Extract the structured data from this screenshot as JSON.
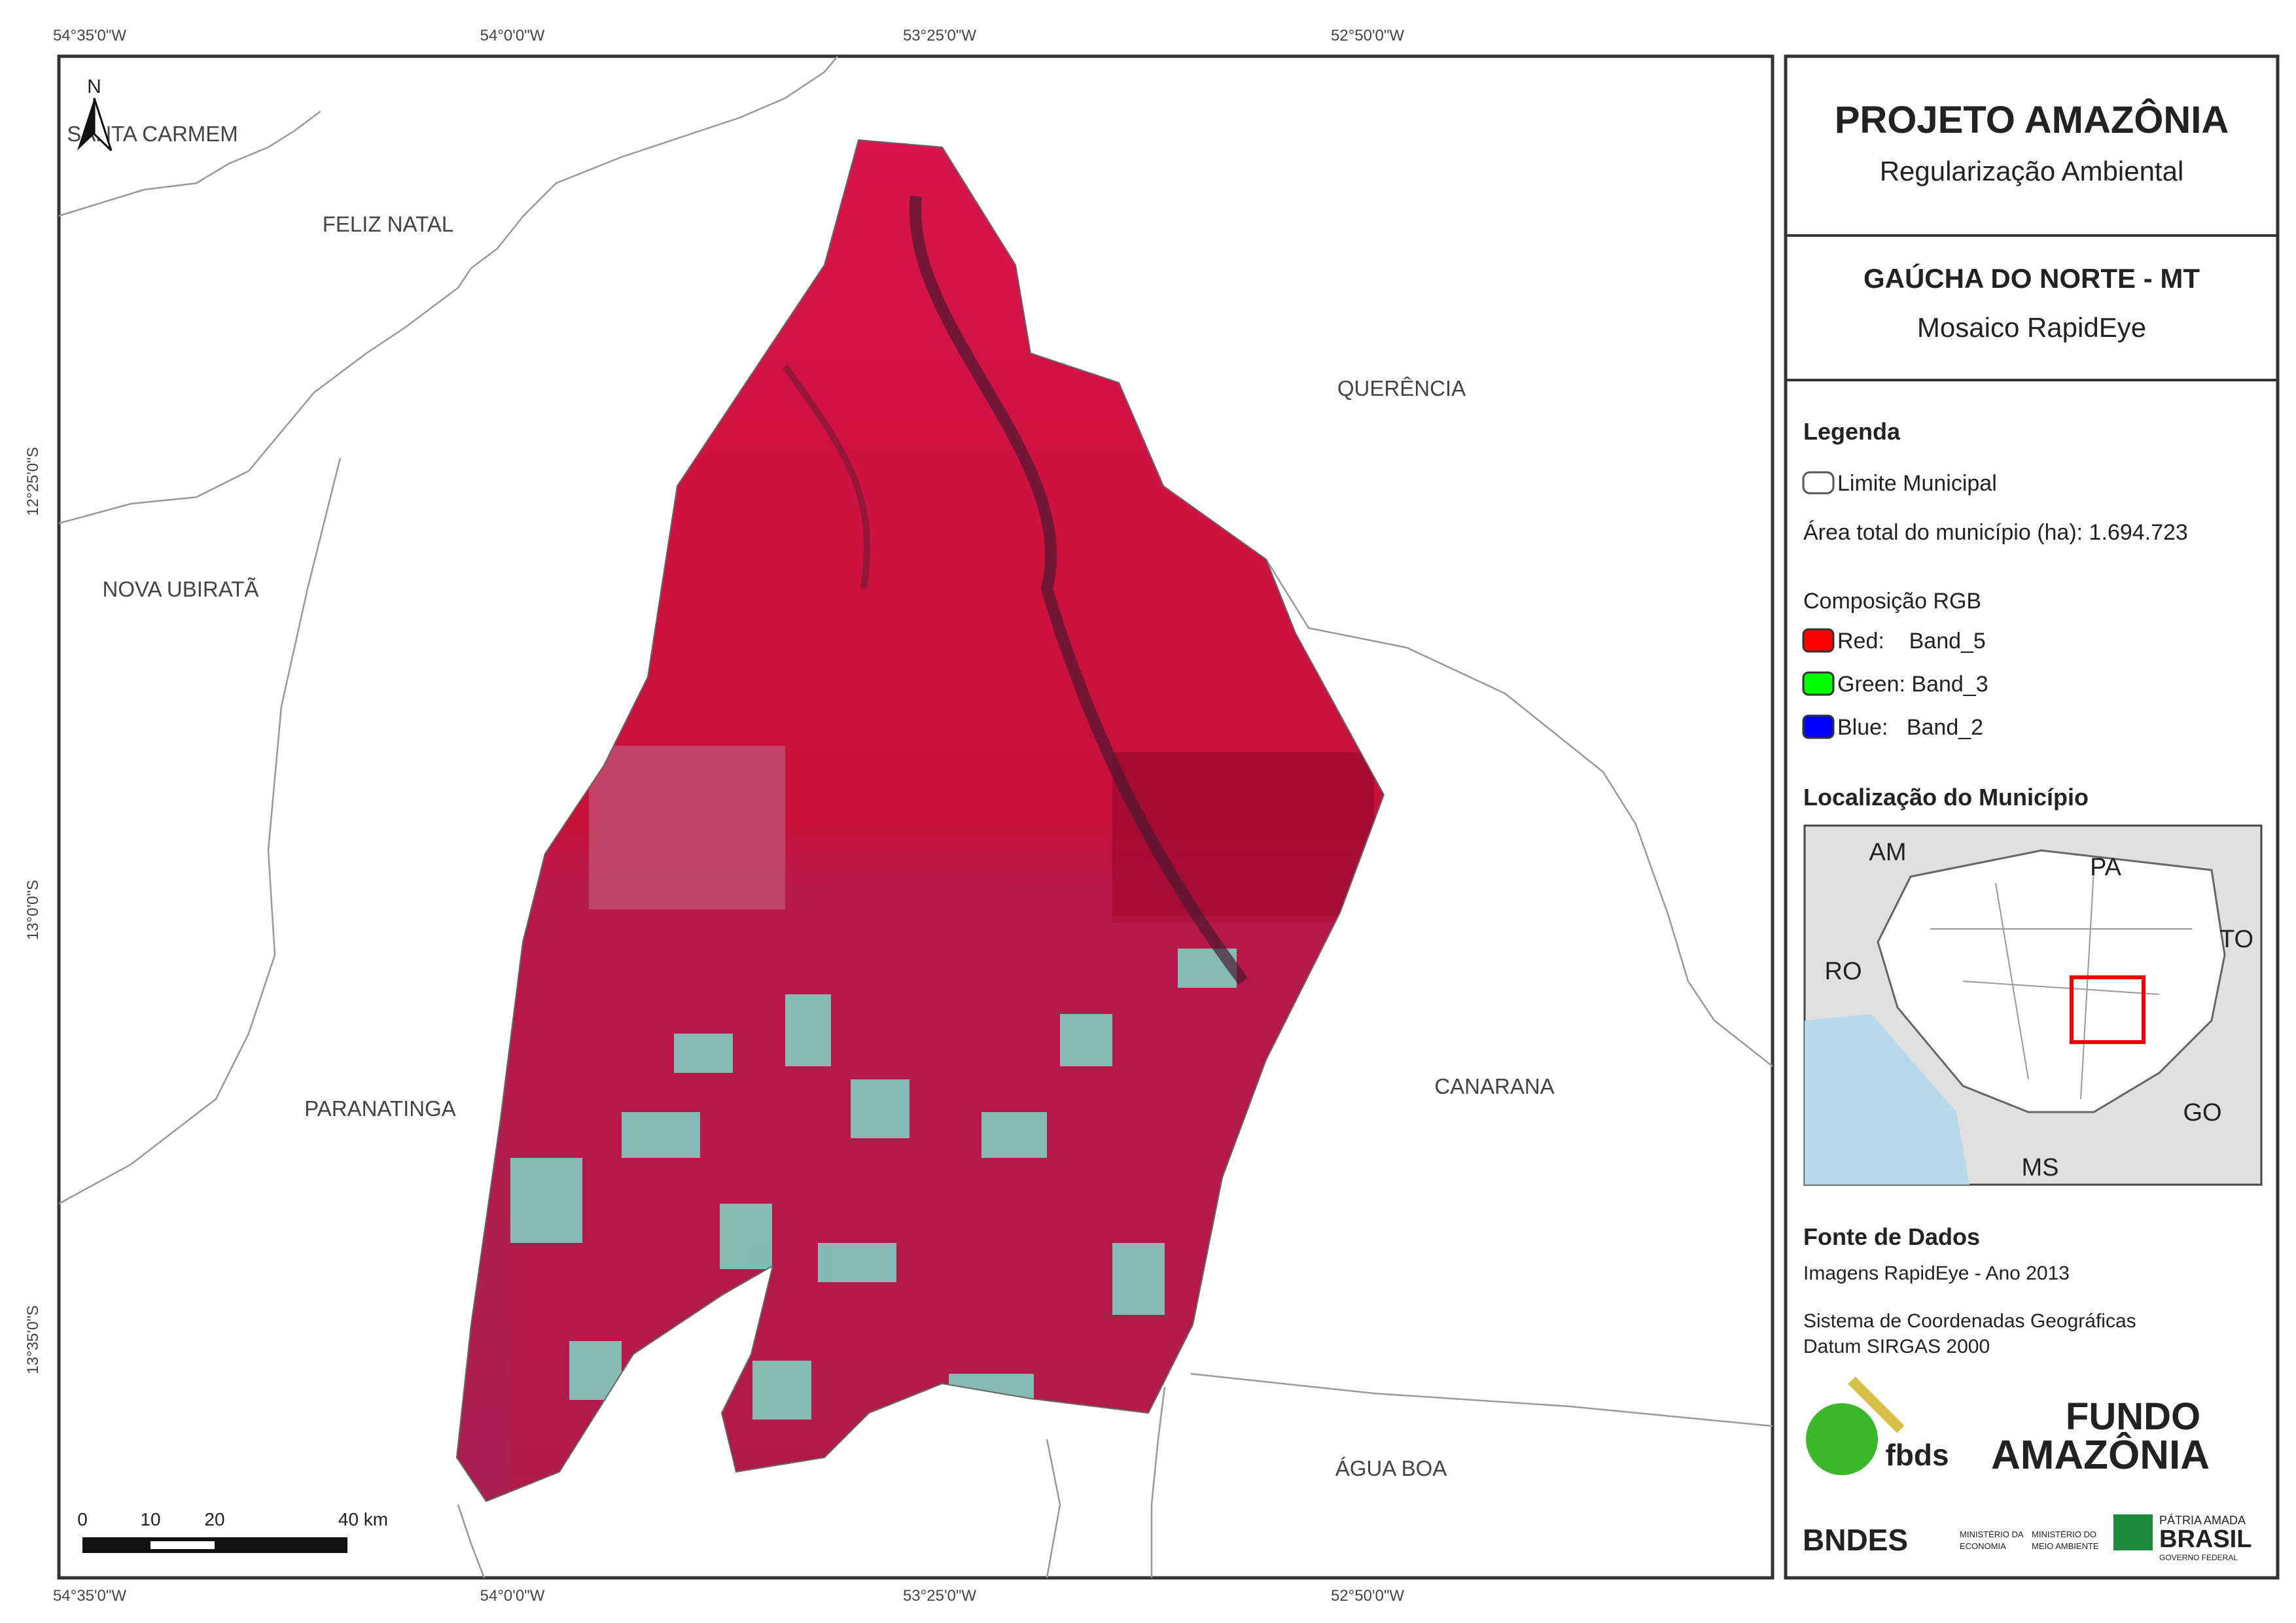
{
  "coordinates": {
    "top": [
      "54°35'0\"W",
      "54°0'0\"W",
      "53°25'0\"W",
      "52°50'0\"W"
    ],
    "bottom": [
      "54°35'0\"W",
      "54°0'0\"W",
      "53°25'0\"W",
      "52°50'0\"W"
    ],
    "left": [
      "12°25'0\"S",
      "13°0'0\"S",
      "13°35'0\"S"
    ]
  },
  "places": [
    "SANTA CARMEM",
    "FELIZ NATAL",
    "QUERÊNCIA",
    "NOVA UBIRATÃ",
    "PARANATINGA",
    "CANARANA",
    "ÁGUA BOA"
  ],
  "north": "N",
  "scale_bar": [
    "0",
    "10",
    "20",
    "40 km"
  ],
  "header": {
    "title": "PROJETO AMAZÔNIA",
    "subtitle": "Regularização Ambiental"
  },
  "map_info": {
    "title": "GAÚCHA DO NORTE - MT",
    "subtitle": "Mosaico RapidEye"
  },
  "legend": {
    "title": "Legenda",
    "boundary": "Limite Municipal",
    "area": "Área total do município (ha): 1.694.723",
    "rgb_title": "Composição RGB",
    "bands": [
      {
        "label": "Red:    Band_5",
        "color": "#ff0000"
      },
      {
        "label": "Green: Band_3",
        "color": "#00ff00"
      },
      {
        "label": "Blue:   Band_2",
        "color": "#0000ff"
      }
    ]
  },
  "locator": {
    "title": "Localização do Município",
    "labels": [
      "AM",
      "PA",
      "TO",
      "RO",
      "GO",
      "MS"
    ]
  },
  "sources": {
    "title": "Fonte de Dados",
    "images": "Imagens RapidEye - Ano 2013",
    "crs": "Sistema de Coordenadas Geográficas",
    "datum": "Datum SIRGAS 2000"
  },
  "logos": {
    "fbds": "fbds",
    "fundo1": "FUNDO",
    "fundo2": "AMAZÔNIA",
    "bndes": "BNDES",
    "min1a": "MINISTÉRIO DA",
    "min1b": "ECONOMIA",
    "min2a": "MINISTÉRIO DO",
    "min2b": "MEIO AMBIENTE",
    "patria1": "PÁTRIA AMADA",
    "patria2": "BRASIL",
    "patria3": "GOVERNO FEDERAL"
  }
}
